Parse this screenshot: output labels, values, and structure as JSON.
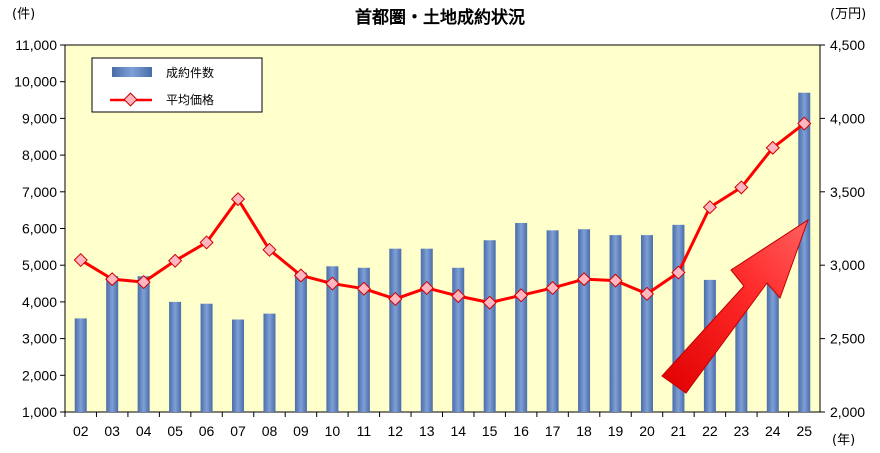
{
  "chart_data": {
    "type": "bar+line",
    "title": "首都圏・土地成約状況",
    "left_unit": "(件)",
    "right_unit": "(万円)",
    "x_unit": "(年)",
    "categories": [
      "02",
      "03",
      "04",
      "05",
      "06",
      "07",
      "08",
      "09",
      "10",
      "11",
      "12",
      "13",
      "14",
      "15",
      "16",
      "17",
      "18",
      "19",
      "20",
      "21",
      "22",
      "23",
      "24",
      "25"
    ],
    "left_axis": {
      "min": 1000,
      "max": 11000,
      "ticks": [
        "1,000",
        "2,000",
        "3,000",
        "4,000",
        "5,000",
        "6,000",
        "7,000",
        "8,000",
        "9,000",
        "10,000",
        "11,000"
      ]
    },
    "right_axis": {
      "min": 2000,
      "max": 4500,
      "ticks": [
        "2,000",
        "2,500",
        "3,000",
        "3,500",
        "4,000",
        "4,500"
      ]
    },
    "series": [
      {
        "name": "成約件数",
        "type": "bar",
        "axis": "left",
        "color": "#5b7fb8",
        "values": [
          3550,
          4700,
          4700,
          4000,
          3950,
          3520,
          3680,
          4800,
          4970,
          4930,
          5450,
          5450,
          4930,
          5680,
          6150,
          5950,
          5980,
          5820,
          5820,
          6100,
          4600,
          3800,
          4500,
          9700
        ]
      },
      {
        "name": "平均価格",
        "type": "line",
        "axis": "right",
        "color": "#ff0000",
        "marker_fill": "#ffb6c1",
        "values": [
          3035,
          2905,
          2885,
          3030,
          3155,
          3450,
          3105,
          2930,
          2875,
          2840,
          2770,
          2845,
          2790,
          2745,
          2795,
          2845,
          2905,
          2895,
          2805,
          2950,
          3395,
          3530,
          3800,
          3965
        ]
      }
    ],
    "legend_position": "top-left",
    "annotation": "red upward arrow"
  },
  "colors": {
    "plot_bg": "#ffffcc",
    "bar": "#5b7fb8",
    "line": "#ff0000",
    "arrow": "#ff0000"
  }
}
